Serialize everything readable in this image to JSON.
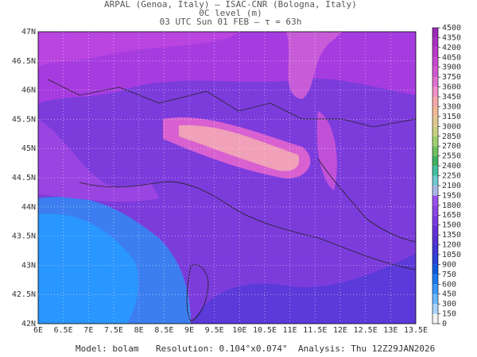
{
  "header": {
    "line1": "ARPAL (Genoa, Italy)  –  ISAC-CNR (Bologna, Italy)",
    "line2": "0C level (m)",
    "line3": "03 UTC Sun 01 FEB  –  τ = 63h"
  },
  "map": {
    "lat_labels": [
      "47N",
      "46.5N",
      "46N",
      "45.5N",
      "45N",
      "44.5N",
      "44N",
      "43.5N",
      "43N",
      "42.5N",
      "42N"
    ],
    "lon_labels": [
      "6E",
      "6.5E",
      "7E",
      "7.5E",
      "8E",
      "8.5E",
      "9E",
      "9.5E",
      "10E",
      "10.5E",
      "11E",
      "11.5E",
      "12E",
      "12.5E",
      "13E",
      "13.5E"
    ]
  },
  "colorbar": {
    "levels": [
      0,
      150,
      300,
      450,
      600,
      750,
      900,
      1050,
      1200,
      1350,
      1500,
      1650,
      1800,
      1950,
      2100,
      2250,
      2400,
      2550,
      2700,
      2850,
      3000,
      3150,
      3300,
      3450,
      3600,
      3750,
      3900,
      4050,
      4200,
      4350,
      4500
    ],
    "colors": [
      "#f2f2f2",
      "#a8d4ff",
      "#6ab8ff",
      "#3a98ff",
      "#1a78f0",
      "#1058e0",
      "#2a44d8",
      "#4034d4",
      "#5430d4",
      "#6630d8",
      "#7a38e0",
      "#8a44e6",
      "#9a50ec",
      "#a8b8e8",
      "#70c8d0",
      "#40c0a0",
      "#40b060",
      "#70c060",
      "#a0d070",
      "#c8d080",
      "#e0c890",
      "#f0b898",
      "#f4a8a8",
      "#f090c8",
      "#e070d0",
      "#d058d0",
      "#c848d0",
      "#b838c8",
      "#a830c0",
      "#9828b8"
    ]
  },
  "footer": {
    "model": "Model: bolam",
    "resolution": "Resolution: 0.104°x0.074°",
    "analysis": "Analysis: Thu 12Z29JAN2026"
  }
}
